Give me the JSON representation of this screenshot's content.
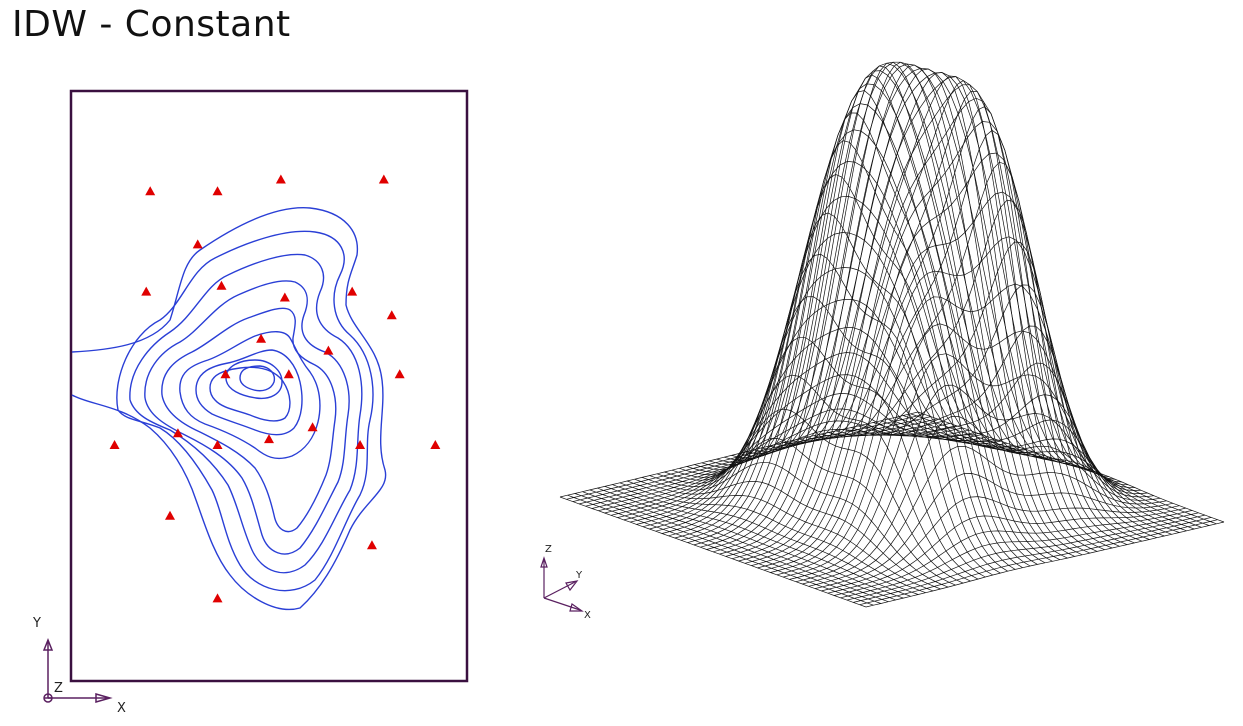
{
  "title": "IDW - Constant",
  "colors": {
    "frame": "#3a1040",
    "contour": "#2a3fd6",
    "sample_point": "#e00000",
    "mesh": "#111111",
    "axis": "#5a2060"
  },
  "views": {
    "contour_plan": {
      "axis_labels": {
        "x": "X",
        "y": "Y",
        "z": "Z"
      },
      "sample_points": [
        [
          0.53,
          0.85
        ],
        [
          0.2,
          0.83
        ],
        [
          0.37,
          0.83
        ],
        [
          0.79,
          0.85
        ],
        [
          0.32,
          0.74
        ],
        [
          0.19,
          0.66
        ],
        [
          0.38,
          0.67
        ],
        [
          0.54,
          0.65
        ],
        [
          0.71,
          0.66
        ],
        [
          0.81,
          0.62
        ],
        [
          0.48,
          0.58
        ],
        [
          0.65,
          0.56
        ],
        [
          0.39,
          0.52
        ],
        [
          0.55,
          0.52
        ],
        [
          0.83,
          0.52
        ],
        [
          0.61,
          0.43
        ],
        [
          0.27,
          0.42
        ],
        [
          0.11,
          0.4
        ],
        [
          0.5,
          0.41
        ],
        [
          0.37,
          0.4
        ],
        [
          0.73,
          0.4
        ],
        [
          0.92,
          0.4
        ],
        [
          0.25,
          0.28
        ],
        [
          0.76,
          0.23
        ],
        [
          0.37,
          0.14
        ]
      ]
    },
    "surface_3d": {
      "axis_labels": {
        "x": "X",
        "y": "Y",
        "z": "Z"
      },
      "peaks": [
        {
          "u": 0.5,
          "v": 0.55,
          "height": 1.0,
          "spread": 0.14
        },
        {
          "u": 0.62,
          "v": 0.7,
          "height": 0.72,
          "spread": 0.1
        },
        {
          "u": 0.4,
          "v": 0.42,
          "height": 0.55,
          "spread": 0.11
        },
        {
          "u": 0.7,
          "v": 0.4,
          "height": 0.5,
          "spread": 0.1
        },
        {
          "u": 0.3,
          "v": 0.65,
          "height": 0.25,
          "spread": 0.1
        }
      ]
    }
  }
}
